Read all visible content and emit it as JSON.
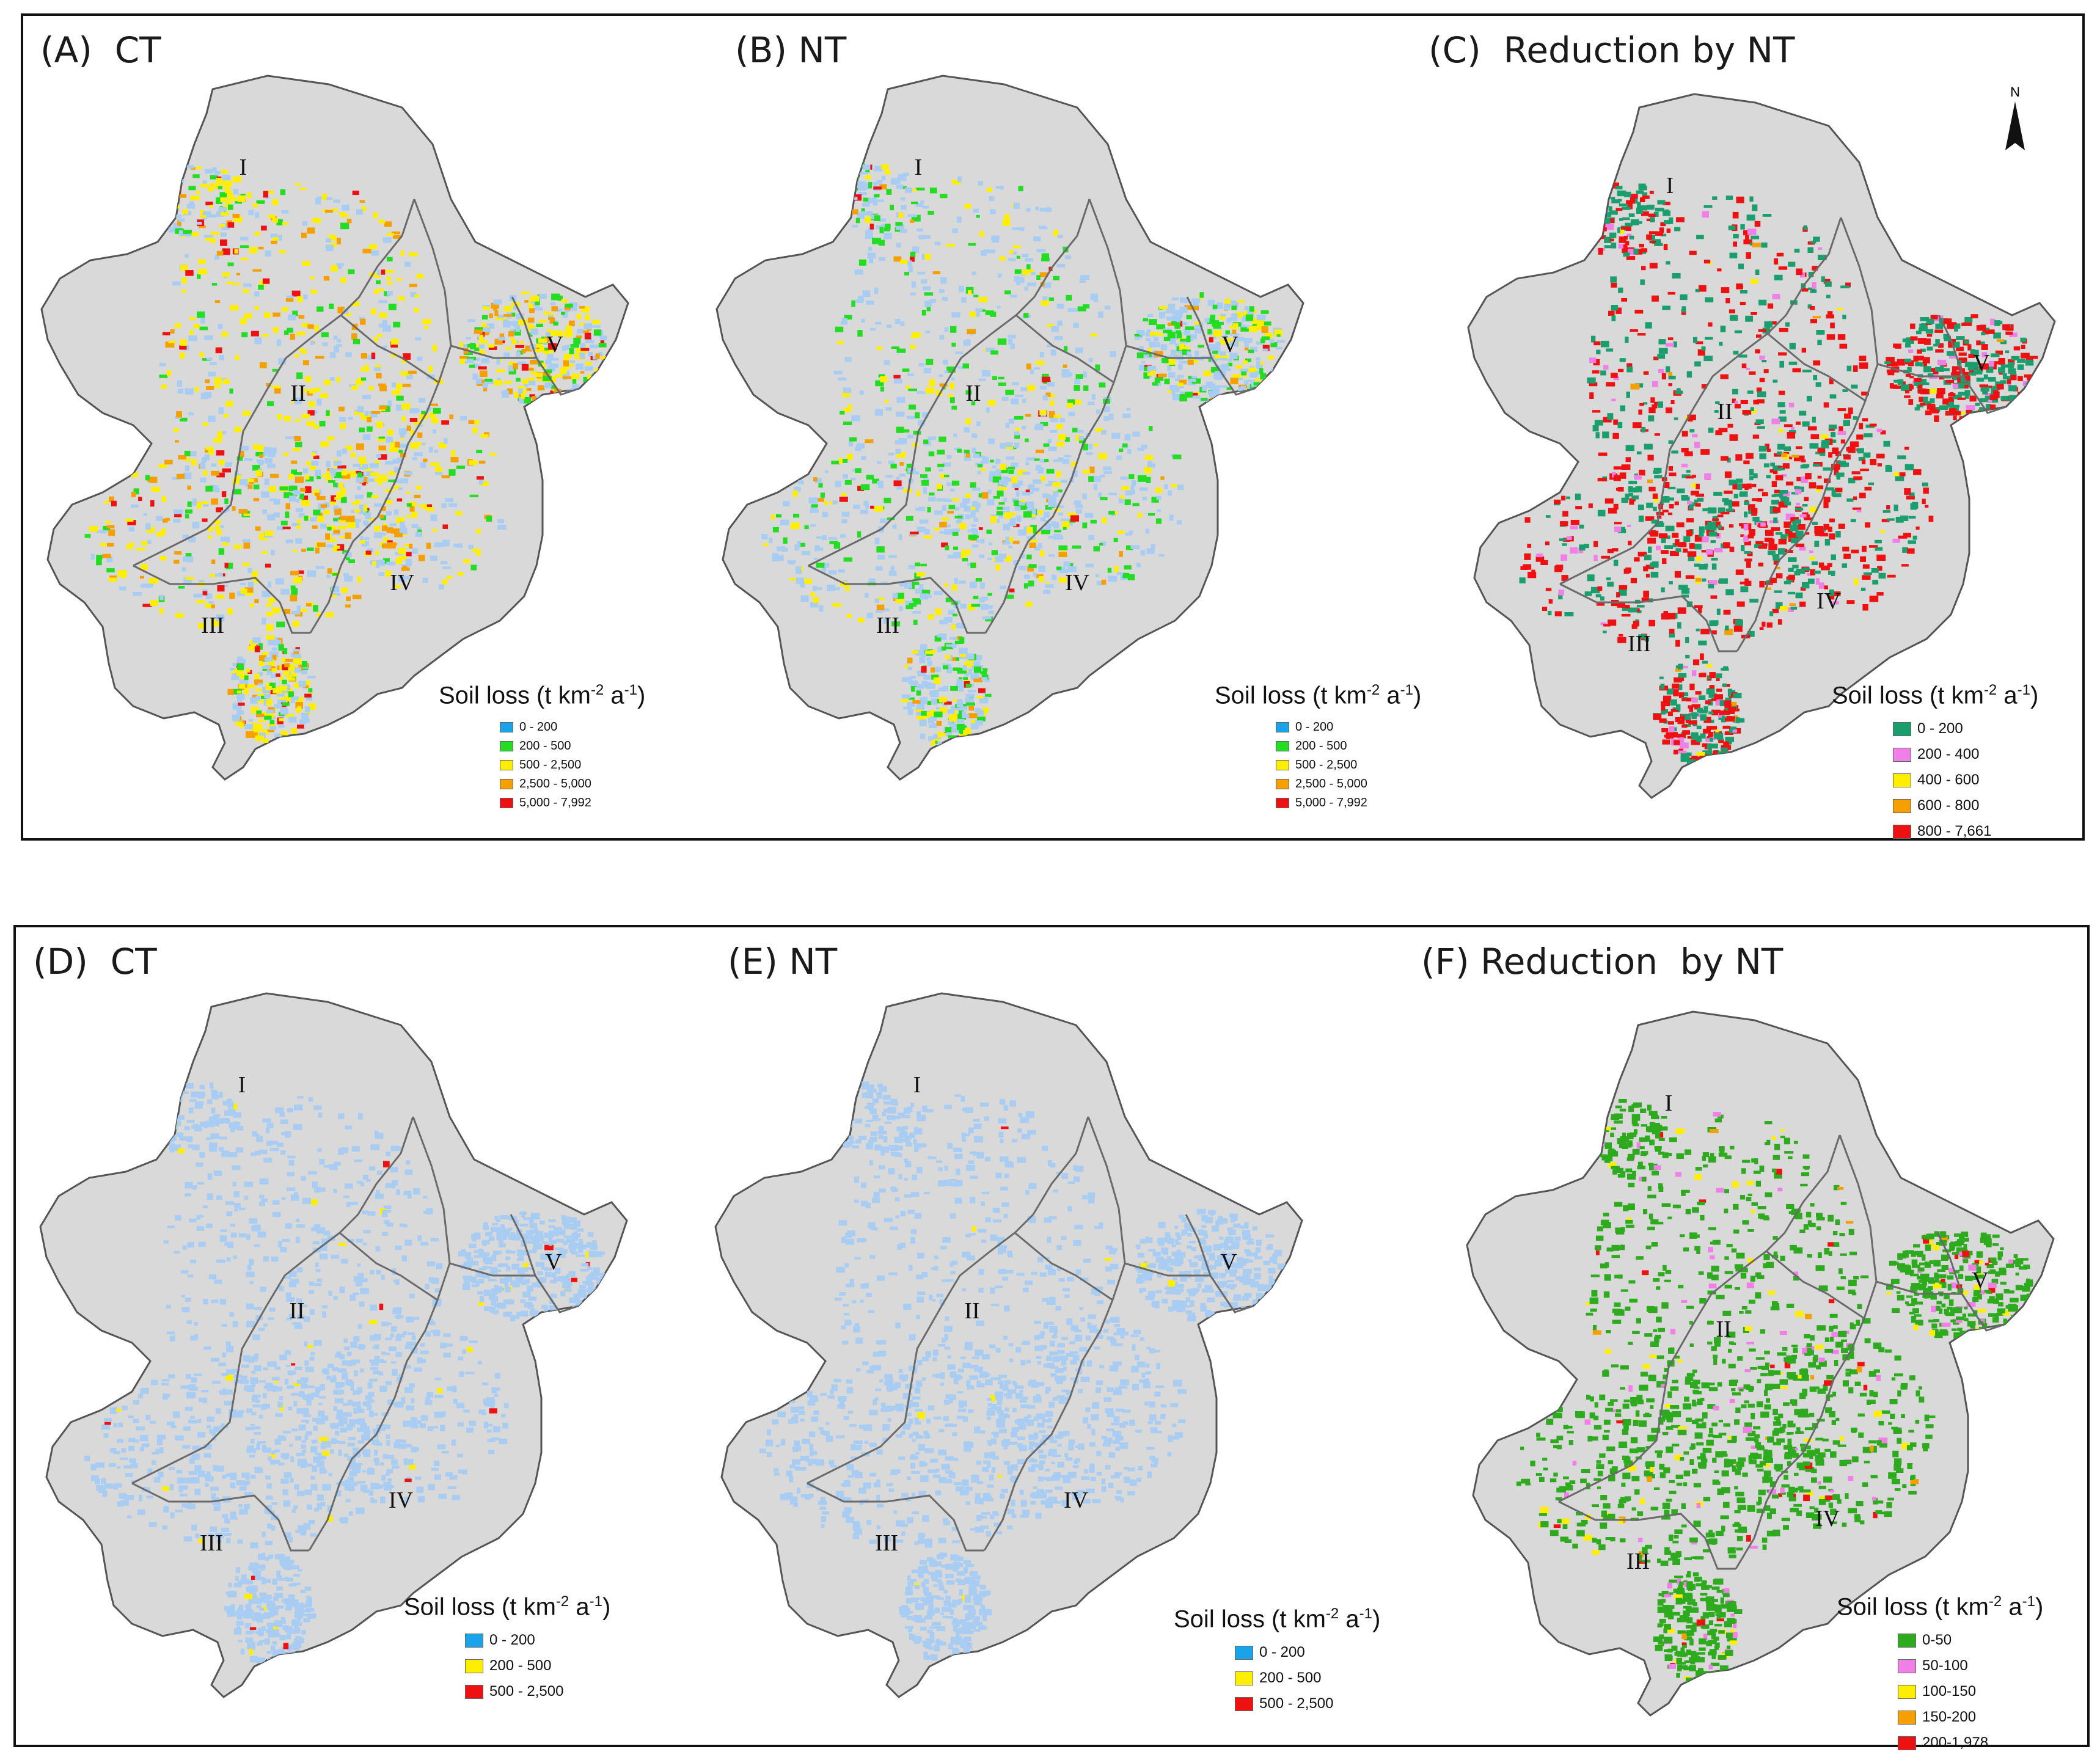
{
  "groups": [
    {
      "id": "top",
      "panels": [
        {
          "title": "(A)  CT",
          "legend_title_main": "Soil loss (t km",
          "legend_title_sup1": "-2",
          "legend_title_mid": " a",
          "legend_title_sup2": "-1",
          "legend_title_end": ")",
          "classes": [
            {
              "label": "0 - 200",
              "color": "#1aa3e8"
            },
            {
              "label": "200 - 500",
              "color": "#22dd22"
            },
            {
              "label": "500 - 2,500",
              "color": "#ffee00"
            },
            {
              "label": "2,500 - 5,000",
              "color": "#f5a000"
            },
            {
              "label": "5,000 - 7,992",
              "color": "#ee1111"
            }
          ]
        },
        {
          "title": "(B) NT",
          "legend_title_main": "Soil loss (t km",
          "legend_title_sup1": "-2",
          "legend_title_mid": " a",
          "legend_title_sup2": "-1",
          "legend_title_end": ")",
          "classes": [
            {
              "label": "0 - 200",
              "color": "#1aa3e8"
            },
            {
              "label": "200 - 500",
              "color": "#22dd22"
            },
            {
              "label": "500 - 2,500",
              "color": "#ffee00"
            },
            {
              "label": "2,500 - 5,000",
              "color": "#f5a000"
            },
            {
              "label": "5,000 - 7,992",
              "color": "#ee1111"
            }
          ]
        },
        {
          "title": "(C)  Reduction by NT",
          "legend_title_main": "Soil loss (t km",
          "legend_title_sup1": "-2",
          "legend_title_mid": " a",
          "legend_title_sup2": "-1",
          "legend_title_end": ")",
          "classes": [
            {
              "label": "0 - 200",
              "color": "#1a9e6e"
            },
            {
              "label": "200 - 400",
              "color": "#f080e8"
            },
            {
              "label": "400 - 600",
              "color": "#ffee00"
            },
            {
              "label": "600 - 800",
              "color": "#f5a000"
            },
            {
              "label": "800 - 7,661",
              "color": "#ee1111"
            }
          ]
        }
      ]
    },
    {
      "id": "bottom",
      "panels": [
        {
          "title": "(D)  CT",
          "legend_title_main": "Soil loss (t km",
          "legend_title_sup1": "-2",
          "legend_title_mid": " a",
          "legend_title_sup2": "-1",
          "legend_title_end": ")",
          "classes": [
            {
              "label": "0 - 200",
              "color": "#1aa3e8"
            },
            {
              "label": "200 - 500",
              "color": "#ffee00"
            },
            {
              "label": "500 - 2,500",
              "color": "#ee1111"
            }
          ]
        },
        {
          "title": "(E) NT",
          "legend_title_main": "Soil loss (t km",
          "legend_title_sup1": "-2",
          "legend_title_mid": " a",
          "legend_title_sup2": "-1",
          "legend_title_end": ")",
          "classes": [
            {
              "label": "0 - 200",
              "color": "#1aa3e8"
            },
            {
              "label": "200 - 500",
              "color": "#ffee00"
            },
            {
              "label": "500 - 2,500",
              "color": "#ee1111"
            }
          ]
        },
        {
          "title": "(F) Reduction  by NT",
          "legend_title_main": "Soil loss (t km",
          "legend_title_sup1": "-2",
          "legend_title_mid": " a",
          "legend_title_sup2": "-1",
          "legend_title_end": ")",
          "classes": [
            {
              "label": "0-50",
              "color": "#2eaa1e"
            },
            {
              "label": "50-100",
              "color": "#f080e8"
            },
            {
              "label": "100-150",
              "color": "#ffee00"
            },
            {
              "label": "150-200",
              "color": "#f5a000"
            },
            {
              "label": "200-1,978",
              "color": "#ee1111"
            }
          ]
        }
      ]
    }
  ],
  "region_labels": [
    "I",
    "II",
    "III",
    "IV",
    "V"
  ],
  "north_arrow_label": "N",
  "colors": {
    "base_land": "#d9d9d9",
    "outline": "#555555"
  }
}
